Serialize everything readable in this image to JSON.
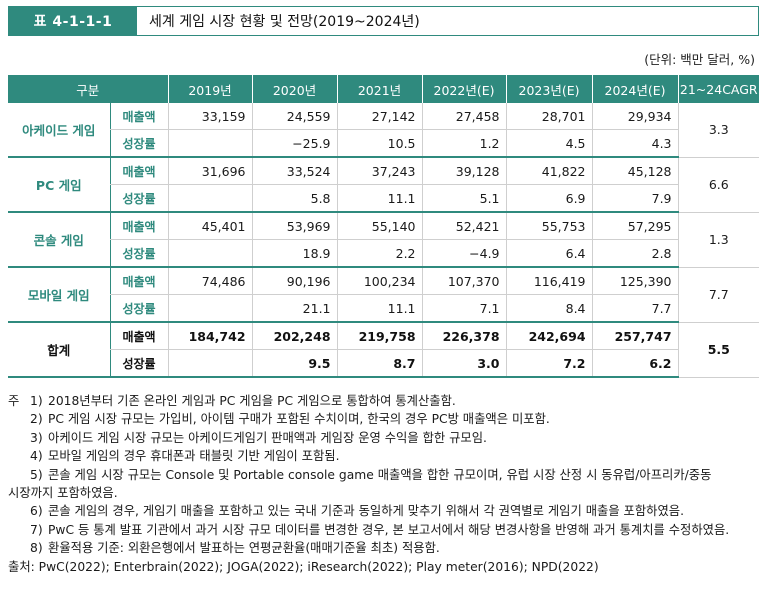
{
  "title": {
    "tag": "표 4-1-1-1",
    "text": "세계 게임 시장 현황 및 전망(2019~2024년)"
  },
  "unit": "(단위: 백만 달러, %)",
  "table": {
    "headers": [
      "구분",
      "2019년",
      "2020년",
      "2021년",
      "2022년(E)",
      "2023년(E)",
      "2024년(E)",
      "21~24CAGR"
    ],
    "groups": [
      {
        "name": "아케이드 게임",
        "rows": [
          {
            "label": "매출액",
            "values": [
              "33,159",
              "24,559",
              "27,142",
              "27,458",
              "28,701",
              "29,934"
            ],
            "cagr": "3.3"
          },
          {
            "label": "성장률",
            "values": [
              "",
              "−25.9",
              "10.5",
              "1.2",
              "4.5",
              "4.3"
            ]
          }
        ]
      },
      {
        "name": "PC 게임",
        "rows": [
          {
            "label": "매출액",
            "values": [
              "31,696",
              "33,524",
              "37,243",
              "39,128",
              "41,822",
              "45,128"
            ],
            "cagr": "6.6"
          },
          {
            "label": "성장률",
            "values": [
              "",
              "5.8",
              "11.1",
              "5.1",
              "6.9",
              "7.9"
            ]
          }
        ]
      },
      {
        "name": "콘솔 게임",
        "rows": [
          {
            "label": "매출액",
            "values": [
              "45,401",
              "53,969",
              "55,140",
              "52,421",
              "55,753",
              "57,295"
            ],
            "cagr": "1.3"
          },
          {
            "label": "성장률",
            "values": [
              "",
              "18.9",
              "2.2",
              "−4.9",
              "6.4",
              "2.8"
            ]
          }
        ]
      },
      {
        "name": "모바일 게임",
        "rows": [
          {
            "label": "매출액",
            "values": [
              "74,486",
              "90,196",
              "100,234",
              "107,370",
              "116,419",
              "125,390"
            ],
            "cagr": "7.7"
          },
          {
            "label": "성장률",
            "values": [
              "",
              "21.1",
              "11.1",
              "7.1",
              "8.4",
              "7.7"
            ]
          }
        ]
      },
      {
        "name": "합계",
        "rows": [
          {
            "label": "매출액",
            "values": [
              "184,742",
              "202,248",
              "219,758",
              "226,378",
              "242,694",
              "257,747"
            ],
            "cagr": "5.5"
          },
          {
            "label": "성장률",
            "values": [
              "",
              "9.5",
              "8.7",
              "3.0",
              "7.2",
              "6.2"
            ]
          }
        ]
      }
    ]
  },
  "notes": {
    "lead": "주",
    "items": [
      {
        "num": "1)",
        "text": "2018년부터 기존 온라인 게임과 PC 게임을 PC 게임으로 통합하여 통계산출함."
      },
      {
        "num": "2)",
        "text": "PC 게임 시장 규모는 가입비, 아이템 구매가 포함된 수치이며, 한국의 경우 PC방 매출액은 미포함."
      },
      {
        "num": "3)",
        "text": "아케이드 게임 시장 규모는 아케이드게임기 판매액과 게임장 운영 수익을 합한 규모임."
      },
      {
        "num": "4)",
        "text": "모바일 게임의 경우 휴대폰과 태블릿 기반 게임이 포함됨."
      },
      {
        "num": "5)",
        "text": "콘솔 게임 시장 규모는 Console 및 Portable console game 매출액을 합한 규모이며, 유럽 시장 산정 시 동유럽/아프리카/중동",
        "cont": "시장까지 포함하였음."
      },
      {
        "num": "6)",
        "text": "콘솔 게임의 경우, 게임기 매출을 포함하고 있는 국내 기준과 동일하게 맞추기 위해서 각 권역별로 게임기 매출을 포함하였음."
      },
      {
        "num": "7)",
        "text": "PwC 등 통계 발표 기관에서 과거 시장 규모 데이터를 변경한 경우, 본 보고서에서 해당 변경사항을 반영해 과거 통계치를 수정하였음."
      },
      {
        "num": "8)",
        "text": "환율적용 기준: 외환은행에서 발표하는 연평균환율(매매기준율 최초) 적용함."
      }
    ],
    "source": "출처: PwC(2022); Enterbrain(2022); JOGA(2022); iResearch(2022); Play meter(2016); NPD(2022)"
  }
}
